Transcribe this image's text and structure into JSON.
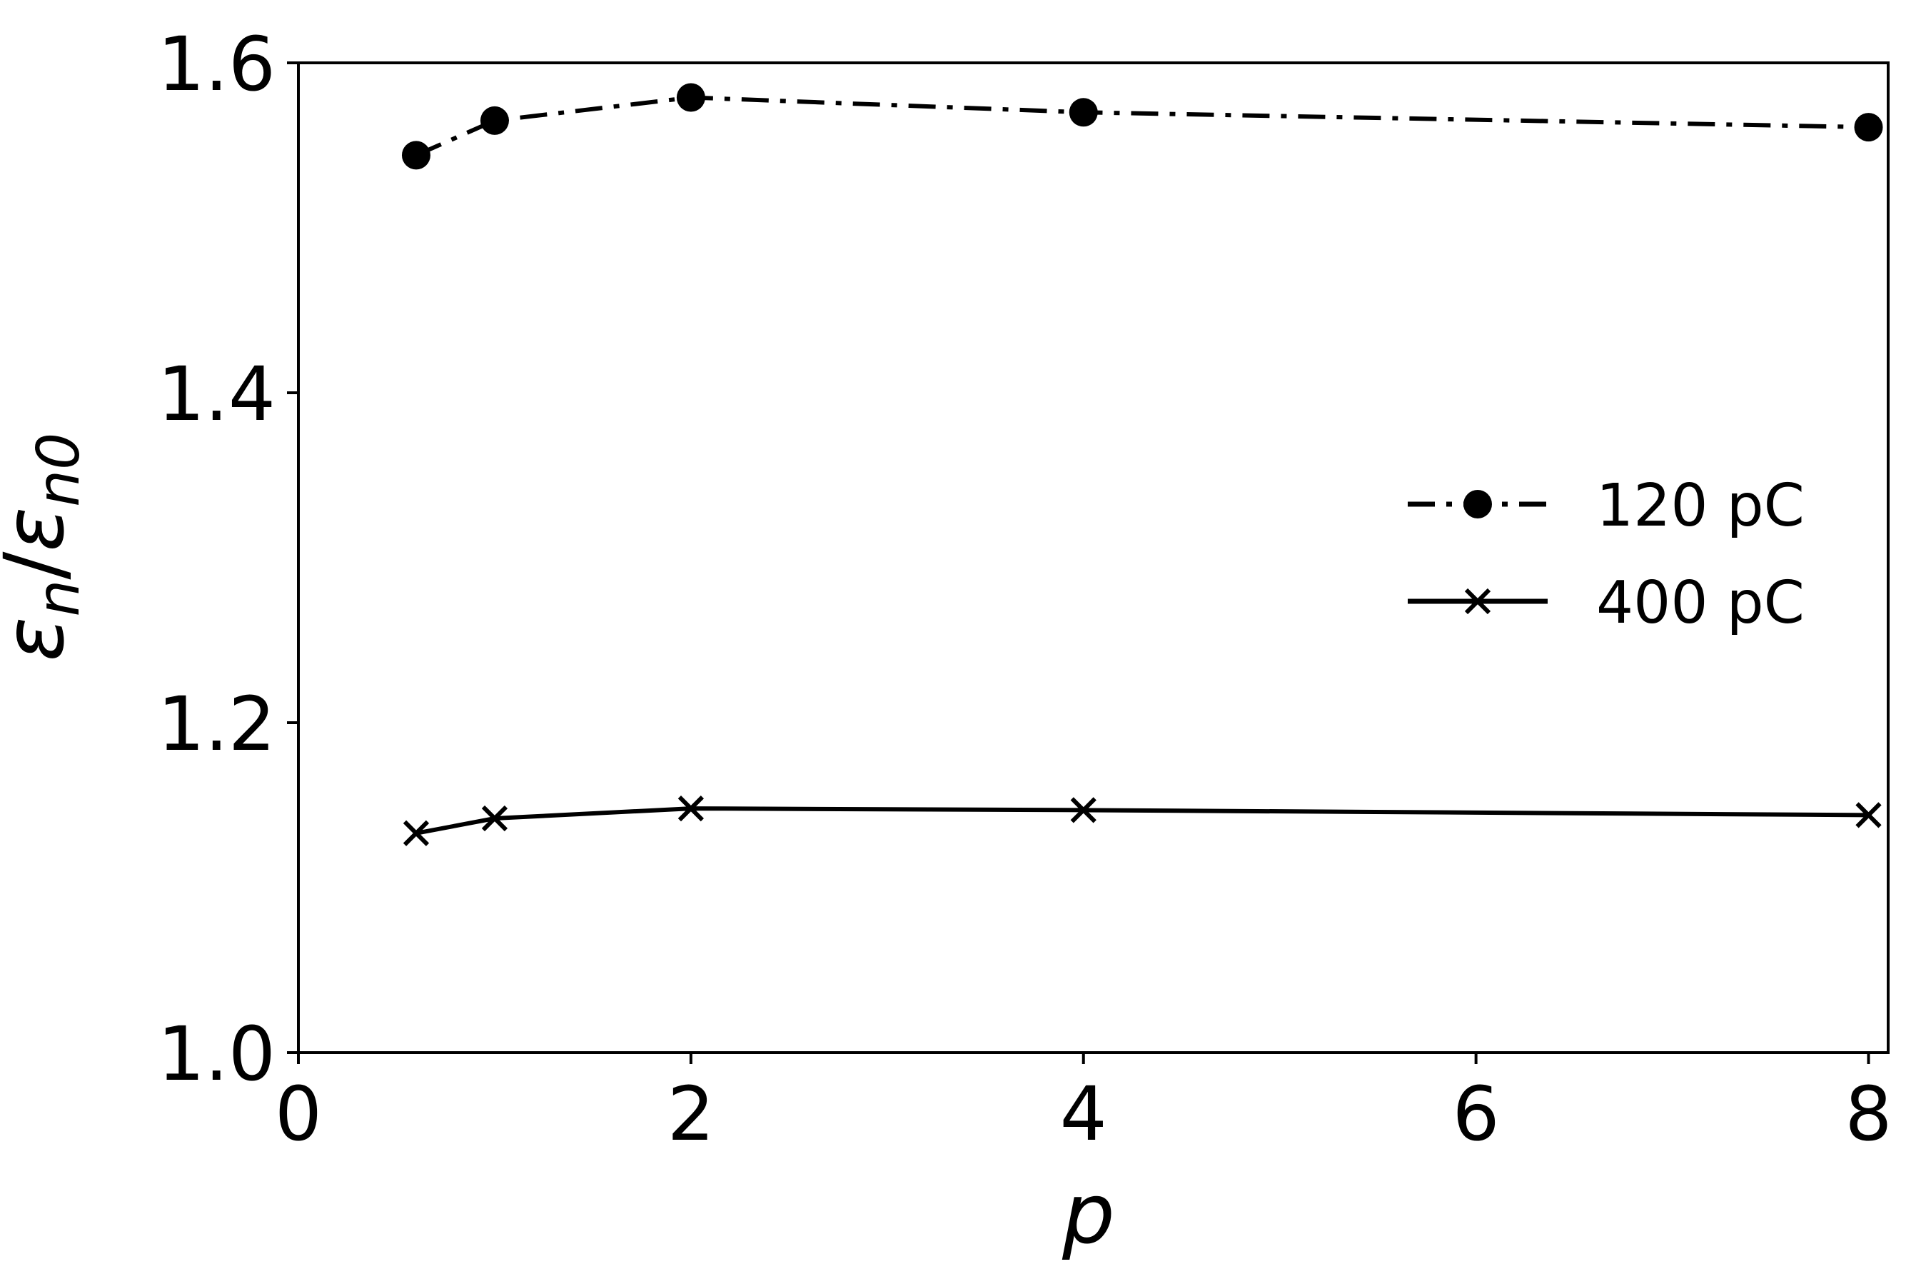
{
  "chart_data": {
    "type": "line",
    "title": "",
    "xlabel": "p",
    "ylabel": "εn/εn0",
    "ylabel_parts": {
      "main_1": "ε",
      "sub_1": "n",
      "slash": "/",
      "main_2": "ε",
      "sub_2": "n0"
    },
    "xlim": [
      0,
      8.1
    ],
    "ylim": [
      1.0,
      1.6
    ],
    "xticks": [
      0,
      2,
      4,
      6,
      8
    ],
    "xtick_labels": [
      "0",
      "2",
      "4",
      "6",
      "8"
    ],
    "yticks": [
      1.0,
      1.2,
      1.4,
      1.6
    ],
    "ytick_labels": [
      "1.0",
      "1.2",
      "1.4",
      "1.6"
    ],
    "grid": false,
    "legend_position": "center-right",
    "series": [
      {
        "name": "120 pC",
        "x": [
          0.6,
          1,
          2,
          4,
          8
        ],
        "y": [
          1.544,
          1.565,
          1.579,
          1.57,
          1.561
        ],
        "line_style": "dash-dot",
        "marker": "circle",
        "color": "#000000"
      },
      {
        "name": "400 pC",
        "x": [
          0.6,
          1,
          2,
          4,
          8
        ],
        "y": [
          1.133,
          1.142,
          1.148,
          1.147,
          1.144
        ],
        "line_style": "solid",
        "marker": "x",
        "color": "#000000"
      }
    ]
  }
}
